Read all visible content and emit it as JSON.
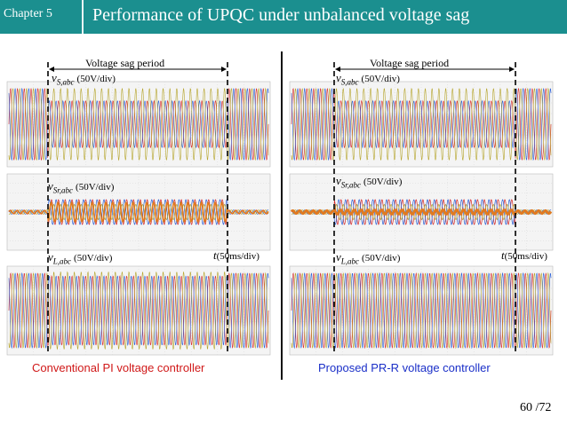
{
  "header": {
    "chapter": "Chapter 5",
    "title": "Performance of UPQC under unbalanced voltage sag"
  },
  "panels": [
    {
      "sag_label": "Voltage sag period",
      "source_var": "v",
      "source_sub": "S,abc",
      "source_scale": "(50V/div)",
      "series_var": "v",
      "series_sub": "Sr,abc",
      "series_scale": "(50V/div)",
      "load_var": "v",
      "load_sub": "L,abc",
      "load_scale": "(50V/div)",
      "time_var": "t",
      "time_scale": "(50ms/div)",
      "caption": "Conventional PI voltage controller"
    },
    {
      "sag_label": "Voltage sag period",
      "source_var": "v",
      "source_sub": "S,abc",
      "source_scale": "(50V/div)",
      "series_var": "v",
      "series_sub": "Sr,abc",
      "series_scale": "(50V/div)",
      "load_var": "v",
      "load_sub": "L,abc",
      "load_scale": "(50V/div)",
      "time_var": "t",
      "time_scale": "(50ms/div)",
      "caption": "Proposed PR-R voltage controller"
    }
  ],
  "page": {
    "current": "60",
    "total": "/72"
  },
  "colors": {
    "header_bg": "#1b8f8f",
    "phase_a": "#d62a2a",
    "phase_b": "#2a5fd6",
    "phase_c": "#b5a42a",
    "compensation": "#e07a20",
    "left_caption": "#d01818",
    "right_caption": "#1a2fc8"
  }
}
